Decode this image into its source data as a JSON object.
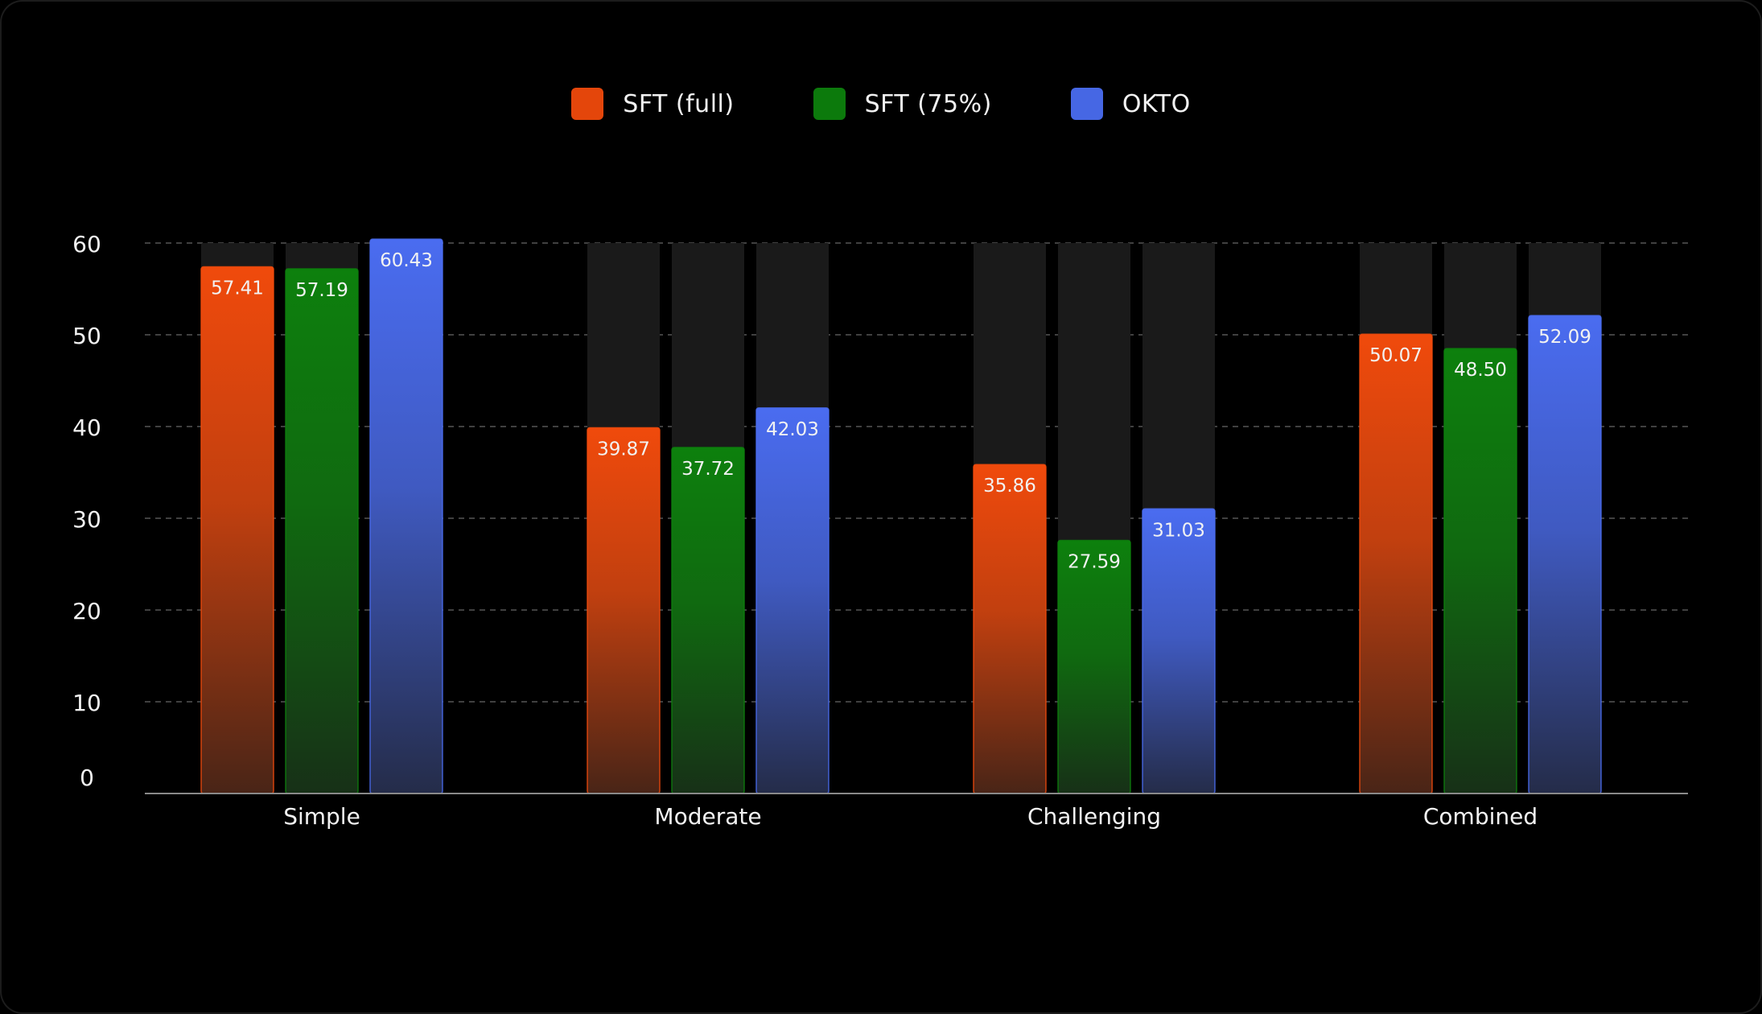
{
  "colors": {
    "background": "#000000",
    "track": "#1a1a1a",
    "grid": "#555555",
    "axis": "#8a8a8a",
    "text": "#f2f2f2"
  },
  "chart_data": {
    "type": "bar",
    "categories": [
      "Simple",
      "Moderate",
      "Challenging",
      "Combined"
    ],
    "series": [
      {
        "name": "SFT (full)",
        "color": "#f04a0c",
        "values": [
          57.41,
          39.87,
          35.86,
          50.07
        ]
      },
      {
        "name": "SFT (75%)",
        "color": "#0d800d",
        "values": [
          57.19,
          37.72,
          27.59,
          48.5
        ]
      },
      {
        "name": "OKTO",
        "color": "#4a6cf0",
        "values": [
          60.43,
          42.03,
          31.03,
          52.09
        ]
      }
    ],
    "value_labels": [
      [
        "57.41",
        "39.87",
        "35.86",
        "50.07"
      ],
      [
        "57.19",
        "37.72",
        "27.59",
        "48.50"
      ],
      [
        "60.43",
        "42.03",
        "31.03",
        "52.09"
      ]
    ],
    "yticks": [
      "0",
      "10",
      "20",
      "30",
      "40",
      "50",
      "60"
    ],
    "ylim": [
      0,
      60
    ],
    "grid": true,
    "legend_position": "top-center",
    "xlabel": "",
    "ylabel": ""
  }
}
